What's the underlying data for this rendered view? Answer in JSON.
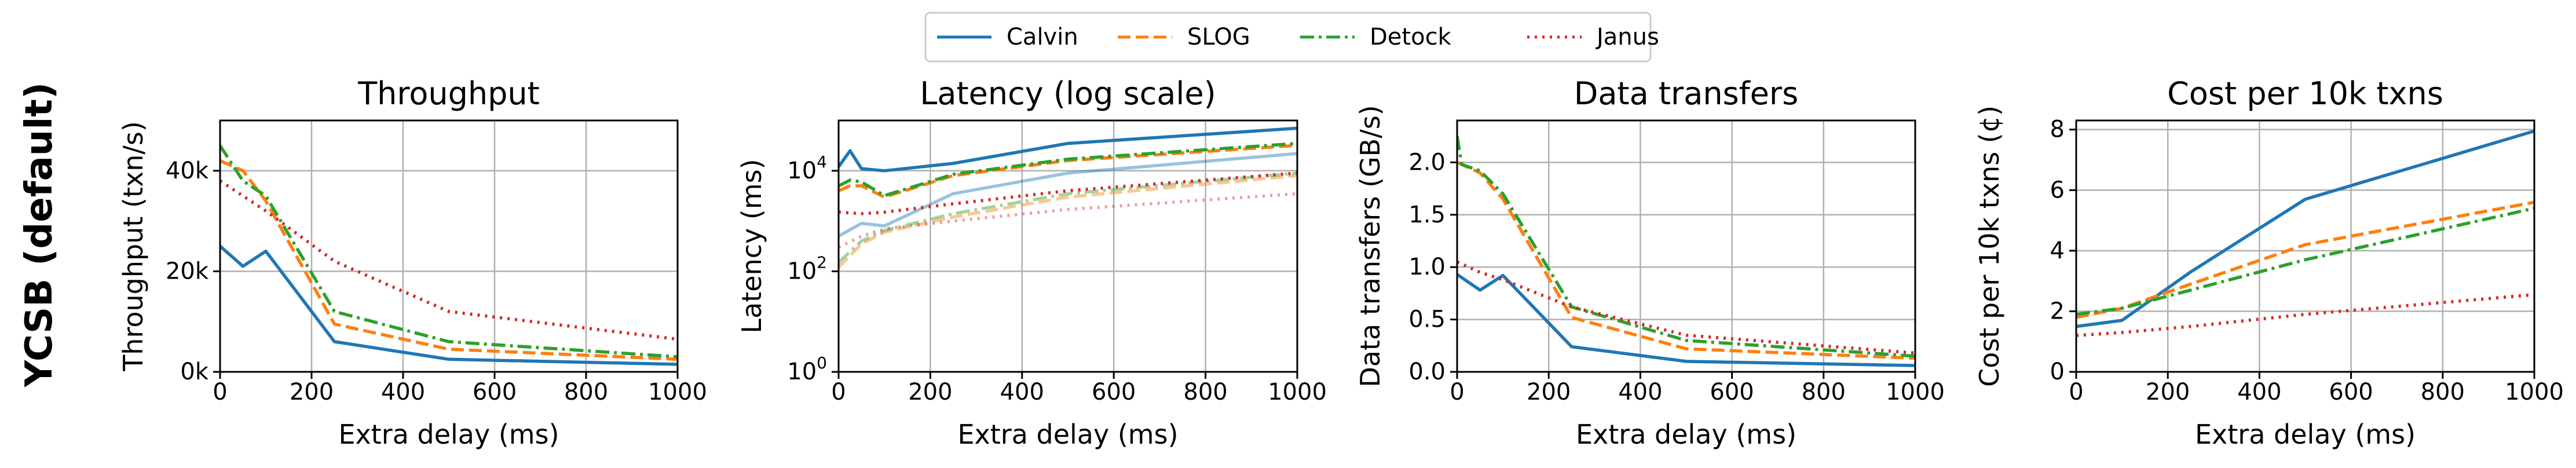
{
  "figure": {
    "row_label": "YCSB (default)"
  },
  "legend": {
    "placement": "top-center",
    "entries": [
      {
        "label": "Calvin",
        "color": "#1f77b4",
        "style": "solid"
      },
      {
        "label": "SLOG",
        "color": "#ff7f0e",
        "style": "dashed"
      },
      {
        "label": "Detock",
        "color": "#2ca02c",
        "style": "dashdot"
      },
      {
        "label": "Janus",
        "color": "#d62728",
        "style": "dotted"
      }
    ]
  },
  "chart_data": [
    {
      "type": "line",
      "title": "Throughput",
      "xlabel": "Extra delay (ms)",
      "ylabel": "Throughput (txn/s)",
      "xlim": [
        0,
        1000
      ],
      "ylim": [
        0,
        50000
      ],
      "yscale": "linear",
      "grid": true,
      "xticks": [
        0,
        200,
        400,
        600,
        800,
        1000
      ],
      "xtick_labels": [
        "0",
        "200",
        "400",
        "600",
        "800",
        "1000"
      ],
      "yticks": [
        0,
        20000,
        40000
      ],
      "ytick_labels": [
        "0k",
        "20k",
        "40k"
      ],
      "series": [
        {
          "name": "Calvin",
          "x": [
            0,
            50,
            100,
            250,
            500,
            1000
          ],
          "y": [
            25000,
            21000,
            24000,
            6000,
            2500,
            1500
          ]
        },
        {
          "name": "SLOG",
          "x": [
            0,
            50,
            100,
            250,
            500,
            1000
          ],
          "y": [
            42000,
            40000,
            34000,
            9500,
            4500,
            2500
          ]
        },
        {
          "name": "Detock",
          "x": [
            0,
            50,
            100,
            250,
            500,
            1000
          ],
          "y": [
            45000,
            38000,
            35000,
            12000,
            6000,
            3000
          ]
        },
        {
          "name": "Janus",
          "x": [
            0,
            50,
            100,
            250,
            500,
            1000
          ],
          "y": [
            38000,
            35000,
            32000,
            22000,
            12000,
            6500
          ]
        }
      ]
    },
    {
      "type": "line",
      "title": "Latency (log scale)",
      "xlabel": "Extra delay (ms)",
      "ylabel": "Latency (ms)",
      "xlim": [
        0,
        1000
      ],
      "ylim": [
        1,
        100000
      ],
      "yscale": "log",
      "grid": true,
      "xticks": [
        0,
        200,
        400,
        600,
        800,
        1000
      ],
      "xtick_labels": [
        "0",
        "200",
        "400",
        "600",
        "800",
        "1000"
      ],
      "yticks": [
        1,
        100,
        10000
      ],
      "ytick_labels": [
        "10^0",
        "10^2",
        "10^4"
      ],
      "series": [
        {
          "name": "Calvin",
          "x": [
            0,
            25,
            50,
            100,
            250,
            500,
            1000
          ],
          "y": [
            12000,
            25000,
            11000,
            10000,
            14000,
            35000,
            70000
          ]
        },
        {
          "name": "SLOG",
          "x": [
            0,
            25,
            50,
            100,
            250,
            500,
            1000
          ],
          "y": [
            4000,
            5000,
            5000,
            3000,
            8000,
            16000,
            32000
          ]
        },
        {
          "name": "Detock",
          "x": [
            0,
            25,
            50,
            100,
            250,
            500,
            1000
          ],
          "y": [
            5000,
            6500,
            6000,
            3200,
            8500,
            17000,
            35000
          ]
        },
        {
          "name": "Janus",
          "x": [
            0,
            50,
            100,
            250,
            500,
            1000
          ],
          "y": [
            1500,
            1400,
            1500,
            2200,
            4000,
            9000
          ]
        },
        {
          "name": "",
          "x": [
            0,
            50,
            100,
            250,
            500,
            1000
          ],
          "y": [
            500,
            900,
            800,
            3500,
            9000,
            22000
          ],
          "faded": true,
          "base": "Calvin"
        },
        {
          "name": "",
          "x": [
            0,
            50,
            100,
            250,
            500,
            1000
          ],
          "y": [
            120,
            350,
            600,
            1200,
            3000,
            8000
          ],
          "faded": true,
          "base": "SLOG"
        },
        {
          "name": "",
          "x": [
            0,
            50,
            100,
            250,
            500,
            1000
          ],
          "y": [
            150,
            400,
            650,
            1400,
            3500,
            9000
          ],
          "faded": true,
          "base": "Detock"
        },
        {
          "name": "",
          "x": [
            0,
            50,
            100,
            250,
            500,
            1000
          ],
          "y": [
            300,
            500,
            700,
            1000,
            1700,
            3500
          ],
          "faded": true,
          "base": "Janus"
        }
      ]
    },
    {
      "type": "line",
      "title": "Data transfers",
      "xlabel": "Extra delay (ms)",
      "ylabel": "Data transfers (GB/s)",
      "xlim": [
        0,
        1000
      ],
      "ylim": [
        0,
        2.4
      ],
      "yscale": "linear",
      "grid": true,
      "xticks": [
        0,
        200,
        400,
        600,
        800,
        1000
      ],
      "xtick_labels": [
        "0",
        "200",
        "400",
        "600",
        "800",
        "1000"
      ],
      "yticks": [
        0,
        0.5,
        1.0,
        1.5,
        2.0
      ],
      "ytick_labels": [
        "0.0",
        "0.5",
        "1.0",
        "1.5",
        "2.0"
      ],
      "series": [
        {
          "name": "Calvin",
          "x": [
            0,
            50,
            100,
            250,
            500,
            1000
          ],
          "y": [
            0.93,
            0.78,
            0.92,
            0.24,
            0.1,
            0.06
          ]
        },
        {
          "name": "SLOG",
          "x": [
            0,
            25,
            50,
            100,
            250,
            500,
            1000
          ],
          "y": [
            2.0,
            1.95,
            1.9,
            1.65,
            0.52,
            0.22,
            0.13
          ]
        },
        {
          "name": "Detock",
          "x": [
            0,
            10,
            50,
            100,
            250,
            500,
            1000
          ],
          "y": [
            2.25,
            1.98,
            1.92,
            1.7,
            0.62,
            0.3,
            0.15
          ]
        },
        {
          "name": "Janus",
          "x": [
            0,
            50,
            100,
            250,
            500,
            1000
          ],
          "y": [
            1.05,
            0.95,
            0.88,
            0.62,
            0.35,
            0.18
          ]
        }
      ]
    },
    {
      "type": "line",
      "title": "Cost per 10k txns",
      "xlabel": "Extra delay (ms)",
      "ylabel": "Cost per 10k txns (¢)",
      "xlim": [
        0,
        1000
      ],
      "ylim": [
        0,
        8.3
      ],
      "yscale": "linear",
      "grid": true,
      "xticks": [
        0,
        200,
        400,
        600,
        800,
        1000
      ],
      "xtick_labels": [
        "0",
        "200",
        "400",
        "600",
        "800",
        "1000"
      ],
      "yticks": [
        0,
        2,
        4,
        6,
        8
      ],
      "ytick_labels": [
        "0",
        "2",
        "4",
        "6",
        "8"
      ],
      "series": [
        {
          "name": "Calvin",
          "x": [
            0,
            100,
            250,
            500,
            1000
          ],
          "y": [
            1.5,
            1.7,
            3.3,
            5.7,
            7.95
          ]
        },
        {
          "name": "SLOG",
          "x": [
            0,
            100,
            250,
            500,
            1000
          ],
          "y": [
            1.8,
            2.1,
            2.9,
            4.2,
            5.6
          ]
        },
        {
          "name": "Detock",
          "x": [
            0,
            100,
            250,
            500,
            1000
          ],
          "y": [
            1.9,
            2.1,
            2.7,
            3.7,
            5.4
          ]
        },
        {
          "name": "Janus",
          "x": [
            0,
            100,
            250,
            500,
            1000
          ],
          "y": [
            1.2,
            1.3,
            1.5,
            1.9,
            2.55
          ]
        }
      ]
    }
  ]
}
